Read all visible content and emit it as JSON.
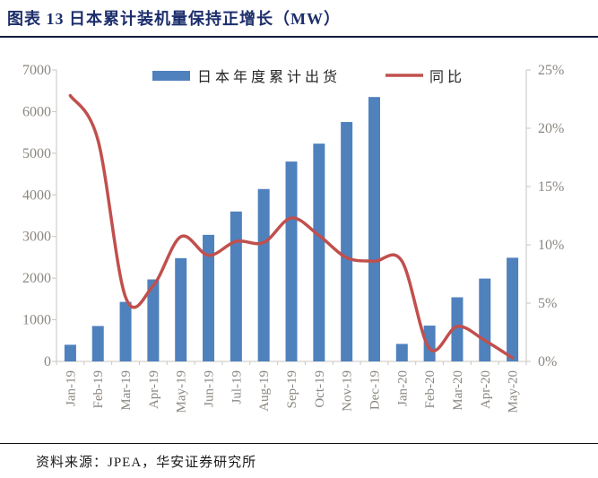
{
  "page": {
    "title": "图表 13 日本累计装机量保持正增长（MW）",
    "source": "资料来源：JPEA，华安证券研究所"
  },
  "colors": {
    "title_text": "#1c2e6b",
    "divider": "#131c3d",
    "source_divider": "#111111",
    "bar": "#4f81bd",
    "line": "#c0504d",
    "axis_text": "#8b8680",
    "axis_line": "#c8c6c2",
    "legend_text": "#262626"
  },
  "chart_data": {
    "type": "bar",
    "subtype": "combo-bar-line-dual-axis",
    "title": "图表 13 日本累计装机量保持正增长（MW）",
    "categories": [
      "Jan-19",
      "Feb-19",
      "Mar-19",
      "Apr-19",
      "May-19",
      "Jun-19",
      "Jul-19",
      "Aug-19",
      "Sep-19",
      "Oct-19",
      "Nov-19",
      "Dec-19",
      "Jan-20",
      "Feb-20",
      "Mar-20",
      "Apr-20",
      "May-20"
    ],
    "series": [
      {
        "name": "日本年度累计出货",
        "type": "bar",
        "axis": "left",
        "unit": "MW",
        "values": [
          400,
          850,
          1430,
          1970,
          2480,
          3040,
          3600,
          4140,
          4800,
          5230,
          5750,
          6350,
          420,
          860,
          1540,
          1990,
          2490
        ]
      },
      {
        "name": "同比",
        "type": "line",
        "axis": "right",
        "unit": "%",
        "values": [
          22.8,
          19.0,
          5.5,
          6.5,
          10.7,
          9.1,
          10.3,
          10.2,
          12.3,
          10.8,
          8.9,
          8.6,
          8.6,
          1.1,
          3.0,
          1.8,
          0.3
        ]
      }
    ],
    "left_axis": {
      "min": 0,
      "max": 7000,
      "step": 1000,
      "tick_labels": [
        "0",
        "1000",
        "2000",
        "3000",
        "4000",
        "5000",
        "6000",
        "7000"
      ]
    },
    "right_axis": {
      "min": 0,
      "max": 25,
      "step": 5,
      "tick_labels": [
        "0%",
        "5%",
        "10%",
        "15%",
        "20%",
        "25%"
      ]
    },
    "grid": false,
    "legend_position": "top-center"
  }
}
